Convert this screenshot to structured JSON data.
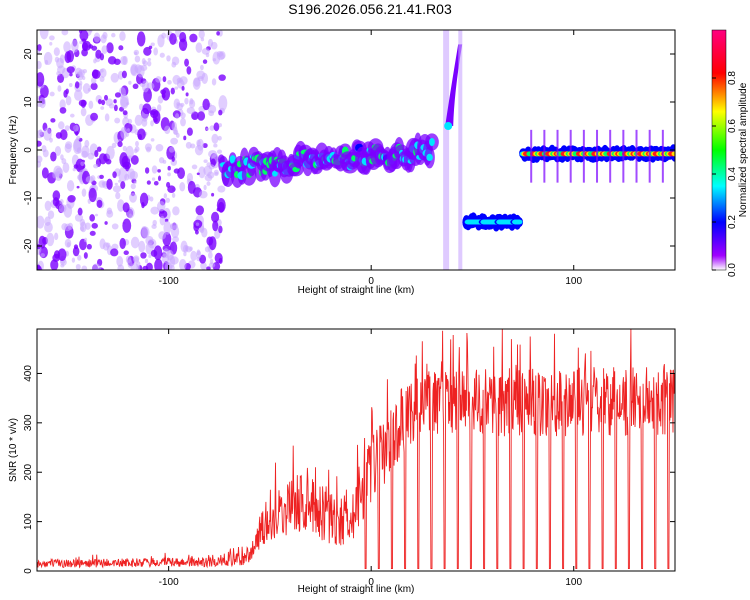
{
  "figure_title": "S196.2026.056.21.41.R03",
  "colors": {
    "low": "#7a00ff",
    "mid": "#0000ff",
    "cyan": "#00e5ff",
    "green": "#00ff66",
    "yellow": "#ffdd00",
    "red": "#ff1a1a",
    "snr_line": "#ee2222"
  },
  "chart_data": [
    {
      "type": "heatmap",
      "title": "",
      "xlabel": "Height of straight line (km)",
      "ylabel": "Frequency (Hz)",
      "xlim": [
        -165,
        150
      ],
      "ylim": [
        -25,
        25
      ],
      "xticks": [
        -100,
        0,
        100
      ],
      "xtick_labels": [
        "-100",
        "0",
        "100"
      ],
      "yticks": [
        -20,
        -10,
        0,
        10,
        20
      ],
      "ytick_labels": [
        "-20",
        "-10",
        "0",
        "10",
        "20"
      ],
      "colorbar": {
        "label": "Normalized spectral amplitude",
        "range": [
          0,
          1
        ],
        "ticks": [
          0.0,
          0.2,
          0.4,
          0.6,
          0.8
        ],
        "tick_labels": [
          "0.0",
          "0.2",
          "0.4",
          "0.6",
          "0.8"
        ]
      },
      "features": [
        {
          "name": "noise",
          "x_range": [
            -165,
            -73
          ],
          "freq_range": [
            -25,
            25
          ],
          "amplitude": 0.1
        },
        {
          "name": "drifting-signal",
          "x_range": [
            -73,
            30
          ],
          "freq_start": -4,
          "freq_end": 0,
          "amplitude": 0.45
        },
        {
          "name": "spike",
          "x_range": [
            37,
            41
          ],
          "freq_start": 5,
          "freq_end": 22,
          "amplitude": 0.3
        },
        {
          "name": "offset-band",
          "x_range": [
            47,
            73
          ],
          "freq": -15,
          "amplitude": 0.45
        },
        {
          "name": "steady-signal",
          "x_range": [
            75,
            150
          ],
          "freq": -0.8,
          "amplitude": 0.9
        }
      ]
    },
    {
      "type": "line",
      "title": "",
      "xlabel": "Height of straight line (km)",
      "ylabel": "SNR (10 * v/v)",
      "xlim": [
        -165,
        150
      ],
      "ylim": [
        0,
        490
      ],
      "xticks": [
        -100,
        0,
        100
      ],
      "xtick_labels": [
        "-100",
        "0",
        "100"
      ],
      "yticks": [
        0,
        100,
        200,
        300,
        400
      ],
      "ytick_labels": [
        "0",
        "100",
        "200",
        "300",
        "400"
      ],
      "series": [
        {
          "name": "SNR",
          "profile_x": [
            -165,
            -75,
            -62,
            -50,
            -35,
            -25,
            -15,
            -8,
            0,
            5,
            10,
            20,
            30,
            150
          ],
          "profile_mean": [
            15,
            18,
            25,
            110,
            140,
            120,
            100,
            130,
            200,
            230,
            270,
            330,
            340,
            345
          ],
          "profile_spread": [
            8,
            10,
            15,
            50,
            60,
            60,
            55,
            65,
            70,
            70,
            70,
            70,
            70,
            70
          ],
          "dropout_start": -3,
          "dropout_period": 6.5,
          "dropout_value": 5
        }
      ]
    }
  ]
}
